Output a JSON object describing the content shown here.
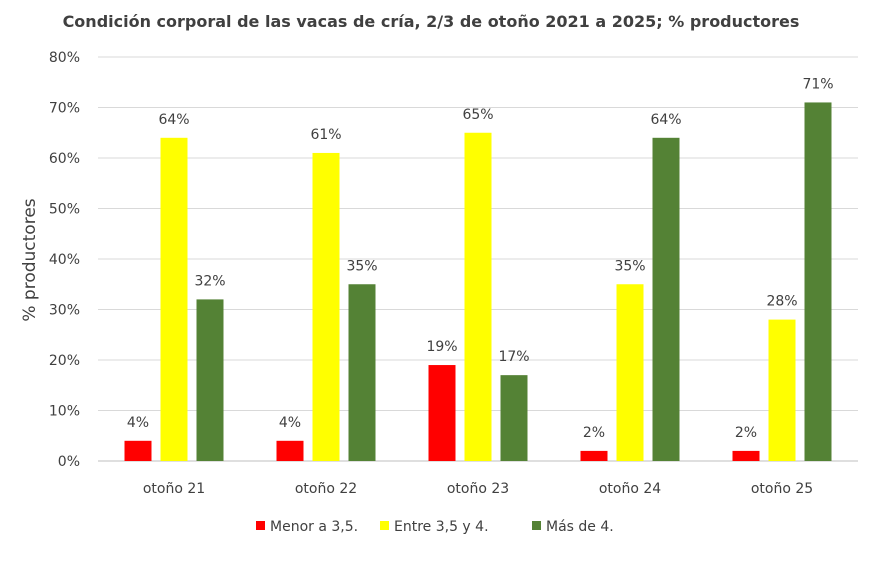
{
  "chart_data": {
    "type": "bar",
    "title": "Condición corporal de las vacas de cría, 2/3 de otoño 2021 a 2025; % productores",
    "xlabel": "",
    "ylabel": "% productores",
    "categories": [
      "otoño 21",
      "otoño 22",
      "otoño 23",
      "otoño 24",
      "otoño 25"
    ],
    "yticks": [
      "0%",
      "10%",
      "20%",
      "30%",
      "40%",
      "50%",
      "60%",
      "70%",
      "80%"
    ],
    "ylim": [
      0,
      80
    ],
    "grid": true,
    "legend_position": "bottom",
    "series": [
      {
        "name": "Menor a 3,5.",
        "color": "#ff0000",
        "values": [
          4,
          4,
          19,
          2,
          2
        ],
        "labels": [
          "4%",
          "4%",
          "19%",
          "2%",
          "2%"
        ]
      },
      {
        "name": "Entre 3,5 y 4.",
        "color": "#ffff00",
        "values": [
          64,
          61,
          65,
          35,
          28
        ],
        "labels": [
          "64%",
          "61%",
          "65%",
          "35%",
          "28%"
        ]
      },
      {
        "name": "Más de 4.",
        "color": "#548235",
        "values": [
          32,
          35,
          17,
          64,
          71
        ],
        "labels": [
          "32%",
          "35%",
          "17%",
          "64%",
          "71%"
        ]
      }
    ]
  }
}
